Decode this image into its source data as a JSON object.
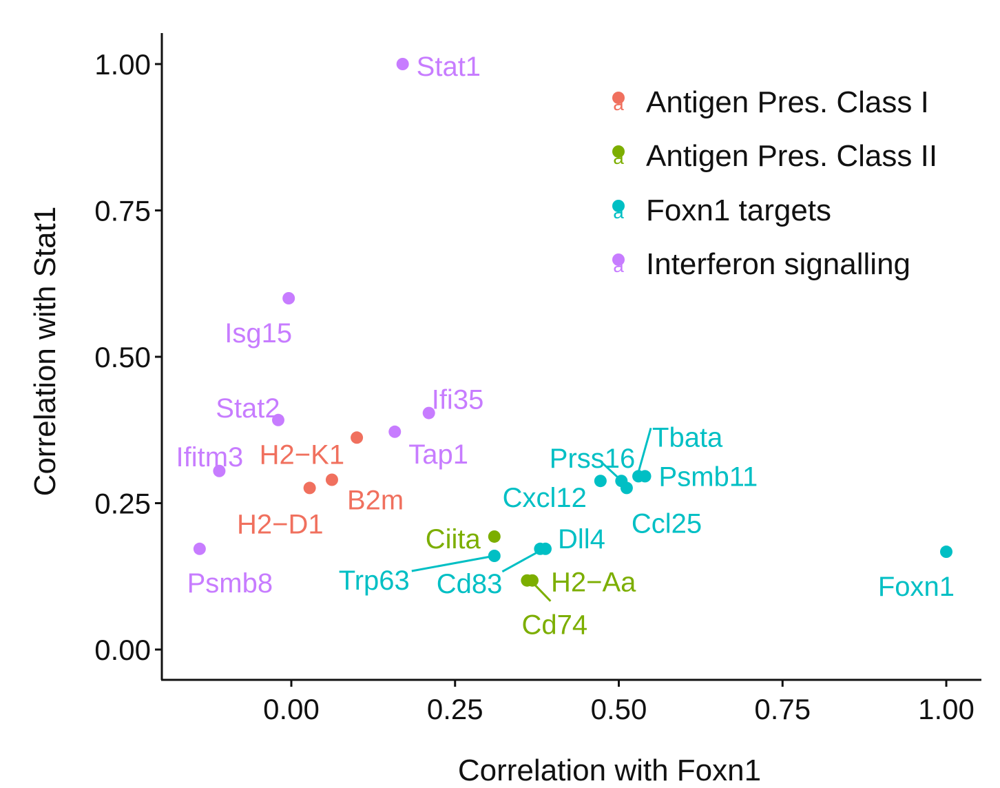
{
  "chart_data": {
    "type": "scatter",
    "title": "",
    "xlabel": "Correlation with Foxn1",
    "ylabel": "Correlation with Stat1",
    "xlim": [
      -0.2,
      1.06
    ],
    "ylim": [
      -0.05,
      1.05
    ],
    "xticks": [
      0.0,
      0.25,
      0.5,
      0.75,
      1.0
    ],
    "xtick_labels": [
      "0.00",
      "0.25",
      "0.50",
      "0.75",
      "1.00"
    ],
    "yticks": [
      0.0,
      0.25,
      0.5,
      0.75,
      1.0
    ],
    "ytick_labels": [
      "0.00",
      "0.25",
      "0.50",
      "0.75",
      "1.00"
    ],
    "grid": false,
    "legend_position": "top-right",
    "legend_key_glyph": "a",
    "series": [
      {
        "name": "Antigen Pres. Class I",
        "color": "#F0705E",
        "points": [
          {
            "label": "H2−K1",
            "x": 0.1,
            "y": 0.362
          },
          {
            "label": "B2m",
            "x": 0.062,
            "y": 0.29
          },
          {
            "label": "H2−D1",
            "x": 0.028,
            "y": 0.276
          }
        ]
      },
      {
        "name": "Antigen Pres. Class II",
        "color": "#7CAE00",
        "points": [
          {
            "label": "Ciita",
            "x": 0.31,
            "y": 0.193
          },
          {
            "label": "H2−Aa",
            "x": 0.368,
            "y": 0.118
          },
          {
            "label": "Cd74",
            "x": 0.36,
            "y": 0.118
          }
        ]
      },
      {
        "name": "Foxn1 targets",
        "color": "#00BFC4",
        "points": [
          {
            "label": "Trp63",
            "x": 0.31,
            "y": 0.16
          },
          {
            "label": "Cd83",
            "x": 0.38,
            "y": 0.172
          },
          {
            "label": "Dll4",
            "x": 0.388,
            "y": 0.172
          },
          {
            "label": "Cxcl12",
            "x": 0.472,
            "y": 0.288
          },
          {
            "label": "Prss16",
            "x": 0.504,
            "y": 0.288
          },
          {
            "label": "Ccl25",
            "x": 0.512,
            "y": 0.276
          },
          {
            "label": "Tbata",
            "x": 0.53,
            "y": 0.296
          },
          {
            "label": "Psmb11",
            "x": 0.54,
            "y": 0.296
          },
          {
            "label": "Foxn1",
            "x": 1.0,
            "y": 0.167
          }
        ]
      },
      {
        "name": "Interferon signalling",
        "color": "#C77CFF",
        "points": [
          {
            "label": "Stat1",
            "x": 0.17,
            "y": 1.0
          },
          {
            "label": "Isg15",
            "x": -0.004,
            "y": 0.6
          },
          {
            "label": "Ifi35",
            "x": 0.21,
            "y": 0.404
          },
          {
            "label": "Stat2",
            "x": -0.02,
            "y": 0.392
          },
          {
            "label": "Tap1",
            "x": 0.158,
            "y": 0.372
          },
          {
            "label": "Ifitm3",
            "x": -0.11,
            "y": 0.305
          },
          {
            "label": "Psmb8",
            "x": -0.14,
            "y": 0.172
          }
        ]
      }
    ]
  }
}
